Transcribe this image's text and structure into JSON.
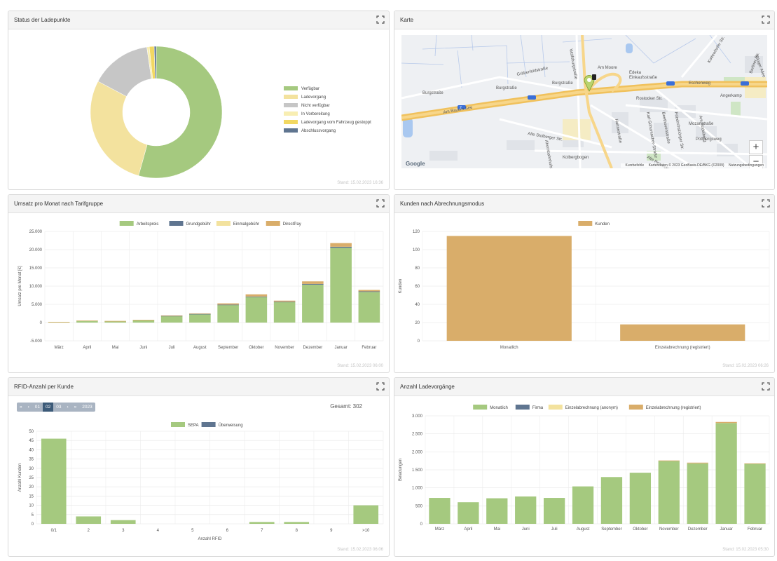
{
  "panels": {
    "status": {
      "title": "Status der Ladepunkte",
      "stamp": "Stand: 15.02.2023 16:36",
      "legend": [
        "Verfügbar",
        "Ladevorgang",
        "Nicht verfügbar",
        "In Vorbereitung",
        "Ladevorgang vom Fahrzeug gestoppt",
        "Abschlussvorgang"
      ]
    },
    "map": {
      "title": "Karte",
      "labels": [
        "Burgstraße",
        "Burgstraße",
        "Burgstraße",
        "Am Moore",
        "Gräberfeldstraße",
        "Am Bauern See",
        "Rostocker Str.",
        "Berliner Str.",
        "Eschenweg",
        "Wolfsburgstraße",
        "Angerkamp",
        "Mozartstraße",
        "Pottbergsweg",
        "Alte Stolberger Str.",
        "Kolbergbogen",
        "Alte Rostocker Str.",
        "Friedrichsbörger Str.",
        "Beethovenstraße",
        "Am Rodelberg",
        "Karl-Schumacher-Straße",
        "Hannestraße",
        "Ahornbahnhofstraße",
        "Gloger Allee",
        "Einkaufsstraße",
        "Edeka",
        "Kottewhofer Str.",
        "2"
      ],
      "zoom_in": "+",
      "zoom_out": "−",
      "google": "Google",
      "footer": [
        "Kurzbefehle",
        "Kartendaten © 2023 GeoBasis-DE/BKG (©2009)",
        "Nutzungsbedingungen"
      ]
    },
    "umsatz": {
      "title": "Umsatz pro Monat nach Tarifgruppe",
      "stamp": "Stand: 15.02.2023 06:00"
    },
    "kunden": {
      "title": "Kunden nach Abrechnungsmodus",
      "stamp": "Stand: 15.02.2023 06:26"
    },
    "rfid": {
      "title": "RFID-Anzahl per Kunde",
      "stamp": "Stand: 15.02.2023 06:06",
      "pager": [
        "«",
        "‹",
        "01",
        "02",
        "03",
        "›",
        "»",
        "2023"
      ],
      "total": "Gesamt: 302"
    },
    "ladevorgaenge": {
      "title": "Anzahl Ladevorgänge",
      "stamp": "Stand: 15.02.2023 05:30"
    }
  },
  "colors": {
    "green": "#a5c97f",
    "navy": "#5f7590",
    "lightyellow": "#f3e29e",
    "gray": "#c6c6c6",
    "paleyellow": "#f8eeb2",
    "yellow": "#f2d862",
    "tan": "#d9ad6a"
  },
  "chart_data": [
    {
      "id": "status",
      "type": "pie",
      "title": "Status der Ladepunkte",
      "labels": [
        "Verfügbar",
        "Ladevorgang",
        "Nicht verfügbar",
        "In Vorbereitung",
        "Ladevorgang vom Fahrzeug gestoppt",
        "Abschlussvorgang"
      ],
      "values": [
        54.5,
        28.5,
        15.0,
        0.6,
        1.2,
        0.5
      ],
      "colors": [
        "#a5c97f",
        "#f3e29e",
        "#c6c6c6",
        "#f8eeb2",
        "#f2d862",
        "#5f7590"
      ]
    },
    {
      "id": "umsatz",
      "type": "bar",
      "stacked": true,
      "title": "Umsatz pro Monat nach Tarifgruppe",
      "ylabel": "Umsatz pro Monat [€]",
      "ylim": [
        -5000,
        25000
      ],
      "yticks": [
        -5000,
        0,
        5000,
        10000,
        15000,
        20000,
        25000
      ],
      "ytick_labels": [
        "-5.000",
        "0",
        "5.000",
        "10.000",
        "15.000",
        "20.000",
        "25.000"
      ],
      "categories": [
        "März",
        "April",
        "Mai",
        "Juni",
        "Juli",
        "August",
        "September",
        "Oktober",
        "November",
        "Dezember",
        "Januar",
        "Februar"
      ],
      "series": [
        {
          "name": "Arbeitspreis",
          "color": "#a5c97f",
          "values": [
            150,
            500,
            400,
            700,
            1800,
            2300,
            4800,
            7000,
            5600,
            10400,
            20500,
            8400
          ]
        },
        {
          "name": "Grundgebühr",
          "color": "#5f7590",
          "values": [
            0,
            0,
            0,
            0,
            60,
            80,
            120,
            150,
            120,
            200,
            300,
            160
          ]
        },
        {
          "name": "Einmalgebühr",
          "color": "#f3e29e",
          "values": [
            0,
            0,
            0,
            0,
            0,
            0,
            0,
            0,
            0,
            0,
            0,
            0
          ]
        },
        {
          "name": "DirectPay",
          "color": "#d9ad6a",
          "values": [
            50,
            60,
            50,
            60,
            100,
            140,
            350,
            600,
            300,
            700,
            1000,
            400
          ]
        }
      ]
    },
    {
      "id": "kunden",
      "type": "bar",
      "title": "Kunden nach Abrechnungsmodus",
      "ylabel": "Kunden",
      "ylim": [
        0,
        120
      ],
      "yticks": [
        0,
        20,
        40,
        60,
        80,
        100,
        120
      ],
      "ytick_labels": [
        "0",
        "20",
        "40",
        "60",
        "80",
        "100",
        "120"
      ],
      "categories": [
        "Monatlich",
        "Einzelabrechnung (registriert)"
      ],
      "series": [
        {
          "name": "Kunden",
          "color": "#d9ad6a",
          "values": [
            115,
            18
          ]
        }
      ]
    },
    {
      "id": "rfid",
      "type": "bar",
      "stacked": true,
      "title": "RFID-Anzahl per Kunde",
      "xlabel": "Anzahl RFID",
      "ylabel": "Anzahl Kunden",
      "ylim": [
        0,
        50
      ],
      "yticks": [
        0,
        5,
        10,
        15,
        20,
        25,
        30,
        35,
        40,
        45,
        50
      ],
      "ytick_labels": [
        "0",
        "5",
        "10",
        "15",
        "20",
        "25",
        "30",
        "35",
        "40",
        "45",
        "50"
      ],
      "categories": [
        "0/1",
        "2",
        "3",
        "4",
        "5",
        "6",
        "7",
        "8",
        "9",
        ">10"
      ],
      "series": [
        {
          "name": "SEPA",
          "color": "#a5c97f",
          "values": [
            46,
            4,
            2,
            0,
            0,
            0,
            1,
            1,
            0,
            10
          ]
        },
        {
          "name": "Überweisung",
          "color": "#5f7590",
          "values": [
            0,
            0,
            0,
            0,
            0,
            0,
            0,
            0,
            0,
            0
          ]
        }
      ]
    },
    {
      "id": "ladevorgaenge",
      "type": "bar",
      "stacked": true,
      "title": "Anzahl Ladevorgänge",
      "ylabel": "Beladungen",
      "ylim": [
        0,
        3000
      ],
      "yticks": [
        0,
        500,
        1000,
        1500,
        2000,
        2500,
        3000
      ],
      "ytick_labels": [
        "0",
        "500",
        "1.000",
        "1.500",
        "2.000",
        "2.500",
        "3.000"
      ],
      "categories": [
        "März",
        "April",
        "Mai",
        "Juni",
        "Juli",
        "August",
        "September",
        "Oktober",
        "November",
        "Dezember",
        "Januar",
        "Februar"
      ],
      "series": [
        {
          "name": "Monatlich",
          "color": "#a5c97f",
          "values": [
            720,
            600,
            710,
            760,
            720,
            1040,
            1300,
            1420,
            1750,
            1680,
            2800,
            1670
          ]
        },
        {
          "name": "Firma",
          "color": "#5f7590",
          "values": [
            0,
            0,
            0,
            0,
            0,
            0,
            0,
            0,
            0,
            0,
            0,
            0
          ]
        },
        {
          "name": "Einzelabrechnung (anonym)",
          "color": "#f3e29e",
          "values": [
            0,
            0,
            0,
            0,
            0,
            0,
            0,
            0,
            0,
            0,
            0,
            0
          ]
        },
        {
          "name": "Einzelabrechnung (registriert)",
          "color": "#d9ad6a",
          "values": [
            0,
            0,
            0,
            0,
            0,
            0,
            0,
            0,
            10,
            20,
            30,
            10
          ]
        }
      ]
    }
  ]
}
